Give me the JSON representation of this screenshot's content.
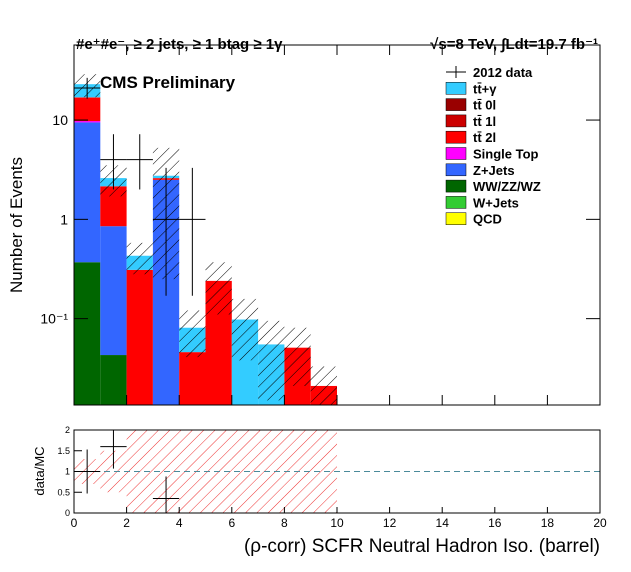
{
  "chart_data": {
    "type": "stacked_histogram",
    "title_left": "#e⁺#e⁻, ≥ 2 jets, ≥ 1 btag ≥ 1γ",
    "title_right": "√s=8 TeV, ∫Ldt=19.7 fb⁻¹",
    "cms_label": "CMS Preliminary",
    "ylabel": "Number of Events",
    "xlabel": "(ρ-corr) SCFR Neutral Hadron Iso. (barrel)",
    "bins": [
      0,
      1,
      2,
      3,
      4,
      5,
      6,
      7,
      8,
      9,
      10
    ],
    "xlim": [
      0,
      20
    ],
    "xticks": [
      0,
      2,
      4,
      6,
      8,
      10,
      12,
      14,
      16,
      18,
      20
    ],
    "log_y": true,
    "ylim": [
      0.0135,
      57
    ],
    "yticks": [
      {
        "value": 0.1,
        "label": "10⁻¹"
      },
      1,
      10
    ],
    "legend": "top-right",
    "series": [
      {
        "name": "QCD",
        "color": "#ffff00",
        "values": [
          0,
          0,
          0,
          0,
          0,
          0,
          0,
          0,
          0,
          0
        ]
      },
      {
        "name": "W+Jets",
        "color": "#33cc33",
        "values": [
          0,
          0,
          0,
          0,
          0,
          0,
          0,
          0,
          0,
          0
        ]
      },
      {
        "name": "WW/ZZ/WZ",
        "color": "#006600",
        "values": [
          0.37,
          0.043,
          0,
          0,
          0,
          0,
          0,
          0,
          0,
          0
        ]
      },
      {
        "name": "Z+Jets",
        "color": "#3366ff",
        "values": [
          9.1,
          0.81,
          0,
          2.5,
          0,
          0,
          0,
          0,
          0,
          0
        ]
      },
      {
        "name": "Single Top",
        "color": "#ff00ff",
        "values": [
          0.3,
          0,
          0,
          0,
          0,
          0,
          0,
          0,
          0,
          0
        ]
      },
      {
        "name": "tt̄ 2l",
        "color": "#ff0000",
        "values": [
          7.0,
          1.3,
          0.31,
          0.1,
          0.046,
          0.24,
          0,
          0,
          0.051,
          0.021
        ]
      },
      {
        "name": "tt̄ 1l",
        "color": "#cc0000",
        "values": [
          0.2,
          0,
          0,
          0,
          0,
          0,
          0,
          0,
          0,
          0
        ]
      },
      {
        "name": "tt̄ 0l",
        "color": "#990000",
        "values": [
          0,
          0,
          0,
          0,
          0,
          0,
          0,
          0,
          0,
          0
        ]
      },
      {
        "name": "tt̄+γ",
        "color": "#33ccff",
        "values": [
          6,
          0.45,
          0.12,
          0.15,
          0.035,
          0,
          0.098,
          0.055,
          0,
          0
        ]
      }
    ],
    "mc_uncertainty": [
      6,
      0.9,
      0.15,
      2.5,
      0.04,
      0.13,
      0.06,
      0.04,
      0.03,
      0.012
    ],
    "data": {
      "name": "2012 data",
      "color": "#000000",
      "x": [
        0.5,
        1.5,
        2.5,
        3.5,
        4.5
      ],
      "values": [
        21,
        4,
        4,
        1,
        1
      ],
      "err_low": [
        4.6,
        2,
        2,
        0.83,
        0.83
      ],
      "err_high": [
        5.6,
        3.2,
        3.2,
        2.3,
        2.3
      ]
    },
    "ratio": {
      "ylabel": "data/MC",
      "ylim": [
        0,
        2
      ],
      "yticks": [
        0,
        0.5,
        1,
        1.5,
        2
      ],
      "values": [
        1.0,
        1.6,
        null,
        0.35,
        null
      ],
      "reference": 1,
      "band": [
        0.3,
        0.5,
        1,
        1,
        1,
        1,
        1,
        1,
        1,
        1
      ]
    }
  }
}
